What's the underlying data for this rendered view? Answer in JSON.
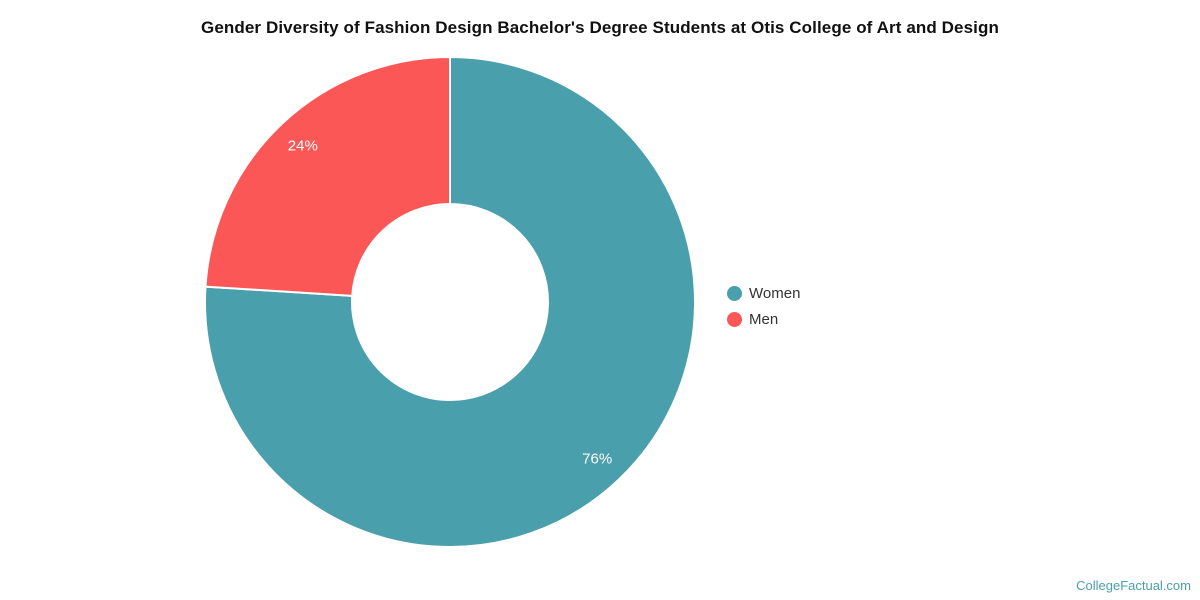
{
  "title": "Gender Diversity of Fashion Design Bachelor's Degree Students at Otis College of Art and Design",
  "watermark": "CollegeFactual.com",
  "colors": {
    "women": "#4A9FAD",
    "men": "#FC5757",
    "slice_label": "#FFFFFF",
    "legend_text": "#333333",
    "title_text": "#111111",
    "watermark_text": "#4A9FAD",
    "background": "#FFFFFF",
    "slice_separator": "#FFFFFF"
  },
  "legend": {
    "position": "right",
    "items": [
      {
        "label": "Women",
        "color": "#4A9FAD"
      },
      {
        "label": "Men",
        "color": "#FC5757"
      }
    ]
  },
  "chart_data": {
    "type": "pie",
    "subtype": "donut",
    "title": "Gender Diversity of Fashion Design Bachelor's Degree Students at Otis College of Art and Design",
    "categories": [
      "Women",
      "Men"
    ],
    "values": [
      76,
      24
    ],
    "labels": [
      "76%",
      "24%"
    ],
    "colors": [
      "#4A9FAD",
      "#FC5757"
    ],
    "start_angle_deg": 0,
    "direction": "clockwise",
    "inner_radius_ratio": 0.4,
    "grid": false,
    "legend_position": "right"
  }
}
